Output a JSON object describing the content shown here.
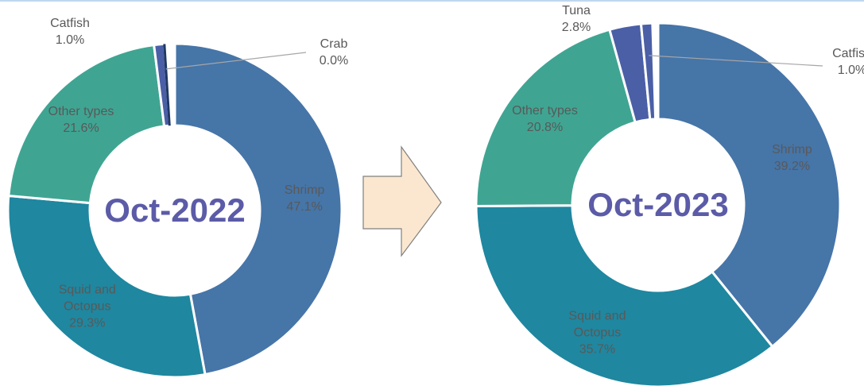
{
  "chart_data": [
    {
      "type": "donut",
      "title": "Oct-2022",
      "categories": [
        "Shrimp",
        "Squid and Octopus",
        "Other types",
        "Catfish",
        "Crab"
      ],
      "values": [
        47.1,
        29.3,
        21.6,
        1.0,
        0.0
      ],
      "value_labels": [
        "47.1%",
        "29.3%",
        "21.6%",
        "1.0%",
        "0.0%"
      ],
      "colors": [
        "#4675a8",
        "#1f87a0",
        "#3fa592",
        "#4a5fa6",
        "#1f3864"
      ]
    },
    {
      "type": "donut",
      "title": "Oct-2023",
      "categories": [
        "Shrimp",
        "Squid and Octopus",
        "Other types",
        "Tuna",
        "Catfish"
      ],
      "values": [
        39.2,
        35.7,
        20.8,
        2.8,
        1.0
      ],
      "value_labels": [
        "39.2%",
        "35.7%",
        "20.8%",
        "2.8%",
        "1.0%"
      ],
      "colors": [
        "#4675a8",
        "#1f87a0",
        "#3fa592",
        "#4a5fa6",
        "#4a5fa6"
      ]
    }
  ]
}
